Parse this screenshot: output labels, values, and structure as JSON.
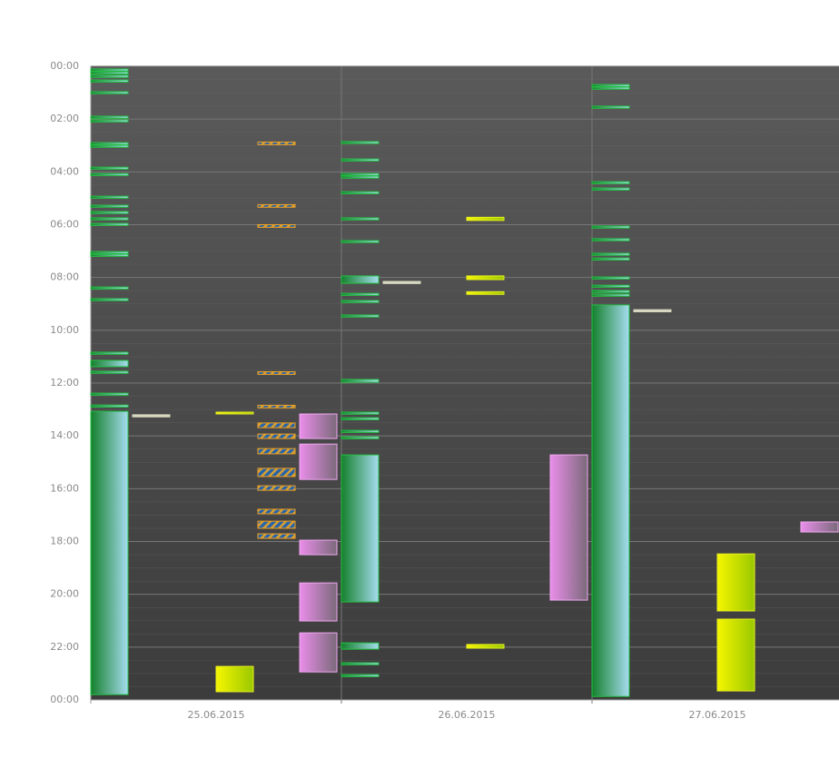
{
  "chart_data": {
    "type": "timeline",
    "categories": [
      "25.06.2015",
      "26.06.2015",
      "27.06.2015"
    ],
    "ylim": [
      0,
      24
    ],
    "yticks": [
      {
        "value": 0,
        "label": "00:00"
      },
      {
        "value": 2,
        "label": "02:00"
      },
      {
        "value": 4,
        "label": "04:00"
      },
      {
        "value": 6,
        "label": "06:00"
      },
      {
        "value": 8,
        "label": "08:00"
      },
      {
        "value": 10,
        "label": "10:00"
      },
      {
        "value": 12,
        "label": "12:00"
      },
      {
        "value": 14,
        "label": "14:00"
      },
      {
        "value": 16,
        "label": "16:00"
      },
      {
        "value": 18,
        "label": "18:00"
      },
      {
        "value": 20,
        "label": "20:00"
      },
      {
        "value": 22,
        "label": "22:00"
      },
      {
        "value": 24,
        "label": "00:00"
      }
    ],
    "grid": true,
    "series": [
      {
        "colors": [
          "#14802c",
          "#a6dcef"
        ],
        "border": "#22c040",
        "bars": [
          [
            0,
            0.1,
            0.18
          ],
          [
            0,
            0.21,
            0.29
          ],
          [
            0,
            0.34,
            0.42
          ],
          [
            0,
            0.52,
            0.6
          ],
          [
            0,
            0.96,
            1.04
          ],
          [
            0,
            1.89,
            1.97
          ],
          [
            0,
            2.03,
            2.11
          ],
          [
            0,
            2.89,
            2.97
          ],
          [
            0,
            2.99,
            3.07
          ],
          [
            0,
            3.82,
            3.9
          ],
          [
            0,
            4.06,
            4.14
          ],
          [
            0,
            4.92,
            5.0
          ],
          [
            0,
            5.26,
            5.34
          ],
          [
            0,
            5.5,
            5.58
          ],
          [
            0,
            5.74,
            5.82
          ],
          [
            0,
            5.95,
            6.03
          ],
          [
            0,
            7.02,
            7.1
          ],
          [
            0,
            7.12,
            7.2
          ],
          [
            0,
            8.36,
            8.44
          ],
          [
            0,
            8.8,
            8.88
          ],
          [
            0,
            10.83,
            10.91
          ],
          [
            0,
            11.14,
            11.38
          ],
          [
            0,
            11.55,
            11.63
          ],
          [
            0,
            12.38,
            12.46
          ],
          [
            0,
            12.83,
            12.91
          ],
          [
            0,
            13.07,
            23.8
          ],
          [
            1,
            2.85,
            2.93
          ],
          [
            1,
            3.51,
            3.59
          ],
          [
            1,
            4.06,
            4.14
          ],
          [
            1,
            4.16,
            4.24
          ],
          [
            1,
            4.75,
            4.83
          ],
          [
            1,
            5.74,
            5.82
          ],
          [
            1,
            6.6,
            6.68
          ],
          [
            1,
            7.94,
            8.22
          ],
          [
            1,
            8.6,
            8.68
          ],
          [
            1,
            8.87,
            8.95
          ],
          [
            1,
            9.42,
            9.5
          ],
          [
            1,
            11.86,
            11.97
          ],
          [
            1,
            13.1,
            13.18
          ],
          [
            1,
            13.31,
            13.39
          ],
          [
            1,
            13.79,
            13.87
          ],
          [
            1,
            14.03,
            14.11
          ],
          [
            1,
            14.72,
            20.29
          ],
          [
            1,
            21.84,
            22.08
          ],
          [
            1,
            22.59,
            22.67
          ],
          [
            1,
            23.04,
            23.12
          ],
          [
            2,
            0.69,
            0.77
          ],
          [
            2,
            0.79,
            0.87
          ],
          [
            2,
            1.51,
            1.59
          ],
          [
            2,
            4.37,
            4.45
          ],
          [
            2,
            4.61,
            4.69
          ],
          [
            2,
            6.05,
            6.13
          ],
          [
            2,
            6.53,
            6.61
          ],
          [
            2,
            7.08,
            7.16
          ],
          [
            2,
            7.26,
            7.34
          ],
          [
            2,
            7.98,
            8.06
          ],
          [
            2,
            8.29,
            8.37
          ],
          [
            2,
            8.49,
            8.57
          ],
          [
            2,
            8.63,
            8.71
          ],
          [
            2,
            9.04,
            23.87
          ]
        ]
      },
      {
        "colors": [
          "#d8d8c2",
          "#d8d8c2"
        ],
        "border": "#d8d8c2",
        "bars": [
          [
            0,
            13.2,
            13.28
          ],
          [
            1,
            8.15,
            8.23
          ],
          [
            2,
            9.22,
            9.3
          ]
        ]
      },
      {
        "colors": [
          "#f6f600",
          "#9ac800"
        ],
        "border": "#e8f020",
        "bars": [
          [
            0,
            13.1,
            13.16
          ],
          [
            0,
            22.73,
            23.69
          ],
          [
            1,
            5.72,
            5.84
          ],
          [
            1,
            7.94,
            8.08
          ],
          [
            1,
            8.54,
            8.64
          ],
          [
            1,
            21.9,
            22.04
          ],
          [
            2,
            18.47,
            20.63
          ],
          [
            2,
            20.94,
            23.66
          ]
        ]
      },
      {
        "colors": [
          "#2a64a8",
          "#d8a030"
        ],
        "border": "#f0a020",
        "pattern": "hatch",
        "bars": [
          [
            0,
            2.87,
            2.97
          ],
          [
            0,
            5.24,
            5.34
          ],
          [
            0,
            6.0,
            6.1
          ],
          [
            0,
            11.57,
            11.67
          ],
          [
            0,
            12.84,
            12.94
          ],
          [
            0,
            13.51,
            13.69
          ],
          [
            0,
            13.93,
            14.1
          ],
          [
            0,
            14.48,
            14.68
          ],
          [
            0,
            15.23,
            15.54
          ],
          [
            0,
            15.89,
            16.06
          ],
          [
            0,
            16.78,
            16.95
          ],
          [
            0,
            17.23,
            17.5
          ],
          [
            0,
            17.71,
            17.88
          ]
        ]
      },
      {
        "colors": [
          "#ea8eea",
          "#7a6a7a"
        ],
        "border": "#f0a8f0",
        "bars": [
          [
            0,
            13.17,
            14.1
          ],
          [
            0,
            14.31,
            15.65
          ],
          [
            0,
            17.95,
            18.5
          ],
          [
            0,
            19.57,
            21.01
          ],
          [
            0,
            21.46,
            22.94
          ],
          [
            1,
            14.72,
            20.22
          ],
          [
            2,
            17.26,
            17.64
          ]
        ]
      }
    ]
  }
}
